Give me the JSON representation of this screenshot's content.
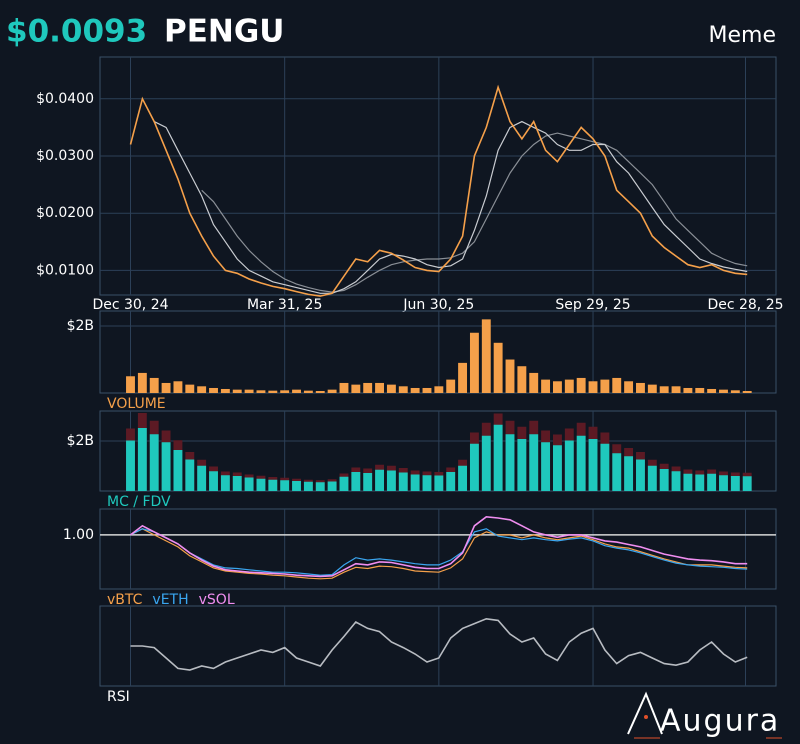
{
  "header": {
    "price": "$0.0093",
    "symbol": "PENGU",
    "category": "Meme"
  },
  "logo": "Augura",
  "chart_data": {
    "type": "financial",
    "grid": true,
    "x": [
      "2024-12-30",
      "2025-01-06",
      "2025-01-13",
      "2025-01-20",
      "2025-01-27",
      "2025-02-03",
      "2025-02-10",
      "2025-02-17",
      "2025-02-24",
      "2025-03-03",
      "2025-03-10",
      "2025-03-17",
      "2025-03-24",
      "2025-03-31",
      "2025-04-07",
      "2025-04-14",
      "2025-04-21",
      "2025-04-28",
      "2025-05-05",
      "2025-05-12",
      "2025-05-19",
      "2025-05-26",
      "2025-06-02",
      "2025-06-09",
      "2025-06-16",
      "2025-06-23",
      "2025-06-30",
      "2025-07-07",
      "2025-07-14",
      "2025-07-21",
      "2025-07-28",
      "2025-08-04",
      "2025-08-11",
      "2025-08-18",
      "2025-08-25",
      "2025-09-01",
      "2025-09-08",
      "2025-09-15",
      "2025-09-22",
      "2025-09-29",
      "2025-10-06",
      "2025-10-13",
      "2025-10-20",
      "2025-10-27",
      "2025-11-03",
      "2025-11-10",
      "2025-11-17",
      "2025-11-24",
      "2025-12-01",
      "2025-12-08",
      "2025-12-15",
      "2025-12-22",
      "2025-12-29"
    ],
    "xlim": [
      "2024-12-12",
      "2026-01-15"
    ],
    "xticks": [
      {
        "value": "2024-12-30",
        "label": "Dec 30, 24"
      },
      {
        "value": "2025-03-31",
        "label": "Mar 31, 25"
      },
      {
        "value": "2025-06-30",
        "label": "Jun 30, 25"
      },
      {
        "value": "2025-09-29",
        "label": "Sep 29, 25"
      },
      {
        "value": "2025-12-28",
        "label": "Dec 28, 25"
      }
    ],
    "panels": [
      {
        "type": "line",
        "ylim": [
          0.0057,
          0.0473
        ],
        "yticks": [
          {
            "value": 0.01,
            "label": "$0.0100"
          },
          {
            "value": 0.02,
            "label": "$0.0200"
          },
          {
            "value": 0.03,
            "label": "$0.0300"
          },
          {
            "value": 0.04,
            "label": "$0.0400"
          }
        ],
        "series": [
          {
            "color": "#8a8f96",
            "values": [
              null,
              null,
              null,
              null,
              null,
              null,
              0.024,
              0.022,
              0.019,
              0.016,
              0.0135,
              0.0115,
              0.0098,
              0.0085,
              0.0076,
              0.007,
              0.0065,
              0.0062,
              0.0065,
              0.0075,
              0.0088,
              0.01,
              0.011,
              0.0115,
              0.0118,
              0.012,
              0.012,
              0.0122,
              0.013,
              0.015,
              0.019,
              0.023,
              0.027,
              0.03,
              0.032,
              0.0335,
              0.034,
              0.0335,
              0.033,
              0.0325,
              0.032,
              0.031,
              0.029,
              0.027,
              0.025,
              0.022,
              0.019,
              0.017,
              0.015,
              0.013,
              0.012,
              0.0112,
              0.0108
            ]
          },
          {
            "color": "#c9ccd1",
            "values": [
              null,
              null,
              0.036,
              0.035,
              0.031,
              0.027,
              0.023,
              0.018,
              0.015,
              0.012,
              0.01,
              0.009,
              0.008,
              0.0075,
              0.007,
              0.0065,
              0.006,
              0.006,
              0.0068,
              0.008,
              0.01,
              0.012,
              0.0128,
              0.0125,
              0.012,
              0.011,
              0.0105,
              0.0108,
              0.012,
              0.017,
              0.023,
              0.031,
              0.035,
              0.036,
              0.035,
              0.034,
              0.032,
              0.031,
              0.031,
              0.032,
              0.032,
              0.029,
              0.027,
              0.024,
              0.021,
              0.018,
              0.016,
              0.014,
              0.012,
              0.0112,
              0.0106,
              0.0102,
              0.0098
            ]
          },
          {
            "color": "#f5a04a",
            "values": [
              0.032,
              0.04,
              0.036,
              0.031,
              0.026,
              0.02,
              0.016,
              0.0125,
              0.01,
              0.0095,
              0.0085,
              0.0078,
              0.0072,
              0.0068,
              0.0063,
              0.0058,
              0.0055,
              0.006,
              0.009,
              0.012,
              0.0115,
              0.0135,
              0.013,
              0.0118,
              0.0105,
              0.01,
              0.0098,
              0.012,
              0.016,
              0.03,
              0.035,
              0.042,
              0.036,
              0.033,
              0.036,
              0.031,
              0.029,
              0.032,
              0.035,
              0.033,
              0.03,
              0.024,
              0.022,
              0.02,
              0.016,
              0.014,
              0.0125,
              0.011,
              0.0105,
              0.011,
              0.01,
              0.0095,
              0.0093
            ]
          }
        ]
      },
      {
        "type": "bar",
        "label": "VOLUME",
        "ylim": [
          0,
          2.45
        ],
        "yticks": [
          {
            "value": 2,
            "label": "$2B"
          }
        ],
        "color": "#f5a04a",
        "values": [
          0.5,
          0.6,
          0.45,
          0.3,
          0.35,
          0.25,
          0.2,
          0.15,
          0.12,
          0.1,
          0.1,
          0.08,
          0.07,
          0.08,
          0.1,
          0.07,
          0.06,
          0.1,
          0.3,
          0.25,
          0.3,
          0.3,
          0.25,
          0.2,
          0.15,
          0.15,
          0.2,
          0.4,
          0.9,
          1.8,
          2.2,
          1.5,
          1.0,
          0.8,
          0.6,
          0.4,
          0.35,
          0.4,
          0.45,
          0.35,
          0.4,
          0.45,
          0.35,
          0.3,
          0.25,
          0.2,
          0.2,
          0.15,
          0.15,
          0.12,
          0.1,
          0.08,
          0.06
        ]
      },
      {
        "type": "bar",
        "label": "MC / FDV",
        "ylim": [
          0,
          3.2
        ],
        "yticks": [
          {
            "value": 2,
            "label": "$2B"
          }
        ],
        "series": [
          {
            "color": "#5c1a24",
            "values": [
              2.5,
              3.12,
              2.81,
              2.42,
              2.03,
              1.56,
              1.25,
              0.98,
              0.78,
              0.74,
              0.66,
              0.61,
              0.56,
              0.53,
              0.49,
              0.45,
              0.43,
              0.47,
              0.7,
              0.94,
              0.9,
              1.05,
              1.01,
              0.92,
              0.82,
              0.78,
              0.76,
              0.94,
              1.25,
              2.34,
              2.73,
              3.1,
              2.81,
              2.57,
              2.81,
              2.42,
              2.26,
              2.5,
              2.73,
              2.57,
              2.34,
              1.87,
              1.72,
              1.56,
              1.25,
              1.09,
              0.98,
              0.86,
              0.82,
              0.86,
              0.78,
              0.74,
              0.73
            ]
          },
          {
            "color": "#1fc8bd",
            "values": [
              2.02,
              2.52,
              2.27,
              1.95,
              1.64,
              1.26,
              1.01,
              0.79,
              0.63,
              0.6,
              0.54,
              0.49,
              0.45,
              0.43,
              0.4,
              0.37,
              0.35,
              0.38,
              0.57,
              0.76,
              0.72,
              0.85,
              0.82,
              0.74,
              0.66,
              0.63,
              0.62,
              0.76,
              1.01,
              1.89,
              2.21,
              2.65,
              2.27,
              2.08,
              2.27,
              1.95,
              1.83,
              2.02,
              2.21,
              2.08,
              1.89,
              1.51,
              1.39,
              1.26,
              1.01,
              0.88,
              0.79,
              0.69,
              0.66,
              0.69,
              0.63,
              0.6,
              0.59
            ]
          }
        ]
      },
      {
        "type": "line",
        "legend": true,
        "ylim": [
          0.1,
          1.43
        ],
        "yticks": [
          {
            "value": 1,
            "label": "1.00"
          }
        ],
        "series": [
          {
            "name": "vBTC",
            "color": "#f5a04a",
            "values": [
              1.0,
              1.1,
              1.0,
              0.9,
              0.8,
              0.65,
              0.55,
              0.45,
              0.4,
              0.38,
              0.36,
              0.35,
              0.33,
              0.32,
              0.3,
              0.28,
              0.27,
              0.28,
              0.38,
              0.46,
              0.44,
              0.48,
              0.47,
              0.44,
              0.4,
              0.39,
              0.38,
              0.45,
              0.6,
              0.95,
              1.05,
              1.0,
              1.0,
              0.95,
              1.0,
              0.95,
              0.92,
              0.95,
              0.98,
              0.92,
              0.85,
              0.8,
              0.78,
              0.72,
              0.66,
              0.6,
              0.55,
              0.5,
              0.5,
              0.5,
              0.48,
              0.46,
              0.45
            ]
          },
          {
            "name": "vETH",
            "color": "#3aa6f0",
            "values": [
              1.0,
              1.1,
              1.05,
              0.95,
              0.85,
              0.7,
              0.6,
              0.5,
              0.45,
              0.44,
              0.42,
              0.4,
              0.38,
              0.38,
              0.37,
              0.35,
              0.33,
              0.34,
              0.5,
              0.62,
              0.58,
              0.6,
              0.58,
              0.55,
              0.52,
              0.5,
              0.5,
              0.58,
              0.72,
              1.05,
              1.1,
              0.98,
              0.95,
              0.92,
              0.95,
              0.92,
              0.9,
              0.93,
              0.95,
              0.9,
              0.82,
              0.78,
              0.75,
              0.7,
              0.64,
              0.58,
              0.53,
              0.5,
              0.48,
              0.47,
              0.46,
              0.44,
              0.43
            ]
          },
          {
            "name": "vSOL",
            "color": "#f08ef0",
            "values": [
              1.0,
              1.15,
              1.05,
              0.95,
              0.85,
              0.7,
              0.58,
              0.48,
              0.42,
              0.4,
              0.38,
              0.37,
              0.36,
              0.35,
              0.33,
              0.32,
              0.31,
              0.32,
              0.42,
              0.52,
              0.5,
              0.55,
              0.54,
              0.5,
              0.46,
              0.44,
              0.44,
              0.52,
              0.7,
              1.15,
              1.3,
              1.28,
              1.25,
              1.15,
              1.05,
              1.0,
              0.96,
              1.0,
              1.0,
              0.95,
              0.9,
              0.88,
              0.84,
              0.8,
              0.74,
              0.68,
              0.64,
              0.6,
              0.58,
              0.57,
              0.55,
              0.52,
              0.52
            ]
          }
        ]
      },
      {
        "type": "line",
        "label": "RSI",
        "ylim": [
          0,
          100
        ],
        "yticks": [],
        "series": [
          {
            "color": "#b8bcc2",
            "values": [
              50,
              50,
              48,
              35,
              22,
              20,
              25,
              22,
              30,
              35,
              40,
              45,
              42,
              48,
              35,
              30,
              25,
              45,
              62,
              80,
              72,
              68,
              55,
              48,
              40,
              30,
              35,
              60,
              72,
              78,
              84,
              82,
              65,
              55,
              60,
              40,
              32,
              55,
              66,
              72,
              45,
              28,
              38,
              42,
              35,
              28,
              26,
              30,
              45,
              55,
              40,
              30,
              36
            ]
          }
        ]
      }
    ]
  }
}
